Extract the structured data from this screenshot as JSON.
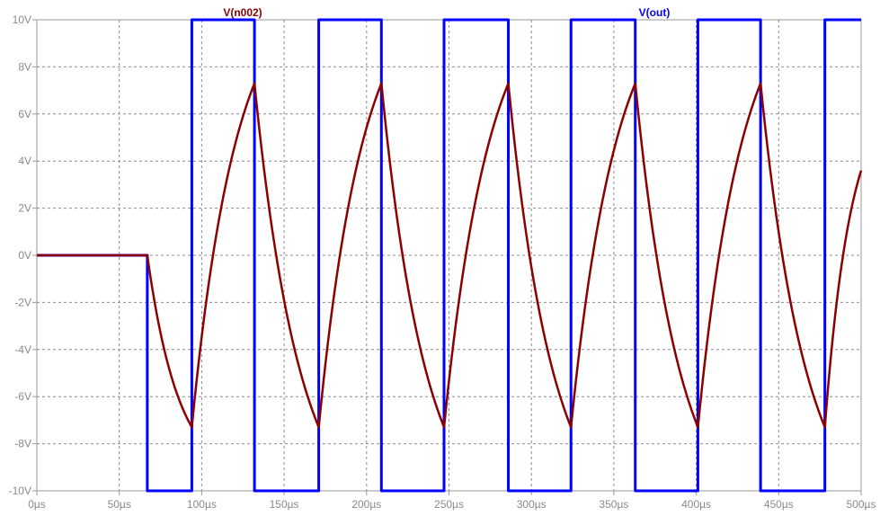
{
  "chart_data": {
    "type": "line",
    "title": "",
    "xlabel": "",
    "ylabel": "",
    "xlim": [
      0,
      500
    ],
    "ylim": [
      -10,
      10
    ],
    "grid": true,
    "x_unit": "µs",
    "y_unit": "V",
    "x_ticks": [
      {
        "value": 0,
        "label": "0µs"
      },
      {
        "value": 50,
        "label": "50µs"
      },
      {
        "value": 100,
        "label": "100µs"
      },
      {
        "value": 150,
        "label": "150µs"
      },
      {
        "value": 200,
        "label": "200µs"
      },
      {
        "value": 250,
        "label": "250µs"
      },
      {
        "value": 300,
        "label": "300µs"
      },
      {
        "value": 350,
        "label": "350µs"
      },
      {
        "value": 400,
        "label": "400µs"
      },
      {
        "value": 450,
        "label": "450µs"
      },
      {
        "value": 500,
        "label": "500µs"
      }
    ],
    "y_ticks": [
      {
        "value": 10,
        "label": "10V"
      },
      {
        "value": 8,
        "label": "8V"
      },
      {
        "value": 6,
        "label": "6V"
      },
      {
        "value": 4,
        "label": "4V"
      },
      {
        "value": 2,
        "label": "2V"
      },
      {
        "value": 0,
        "label": "0V"
      },
      {
        "value": -2,
        "label": "-2V"
      },
      {
        "value": -4,
        "label": "-4V"
      },
      {
        "value": -6,
        "label": "-6V"
      },
      {
        "value": -8,
        "label": "-8V"
      },
      {
        "value": -10,
        "label": "-10V"
      }
    ],
    "series": [
      {
        "name": "V(out)",
        "color": "#0000ff",
        "interpolation": "step",
        "x": [
          0,
          67,
          67,
          94,
          94,
          132,
          132,
          171,
          171,
          209,
          209,
          247,
          247,
          286,
          286,
          324,
          324,
          363,
          363,
          401,
          401,
          439,
          439,
          478,
          478,
          500
        ],
        "y": [
          0,
          0,
          -10,
          -10,
          10,
          10,
          -10,
          -10,
          10,
          10,
          -10,
          -10,
          10,
          10,
          -10,
          -10,
          10,
          10,
          -10,
          -10,
          10,
          10,
          -10,
          -10,
          10,
          10
        ]
      },
      {
        "name": "V(n002)",
        "color": "#8b0000",
        "interpolation": "rc",
        "x": [
          0,
          67,
          94,
          132,
          171,
          209,
          247,
          286,
          324,
          363,
          401,
          439,
          478,
          500
        ],
        "y": [
          0,
          0,
          -7.3,
          7.3,
          -7.3,
          7.3,
          -7.3,
          7.3,
          -7.3,
          7.3,
          -7.3,
          7.3,
          -7.3,
          3.6
        ]
      }
    ]
  }
}
